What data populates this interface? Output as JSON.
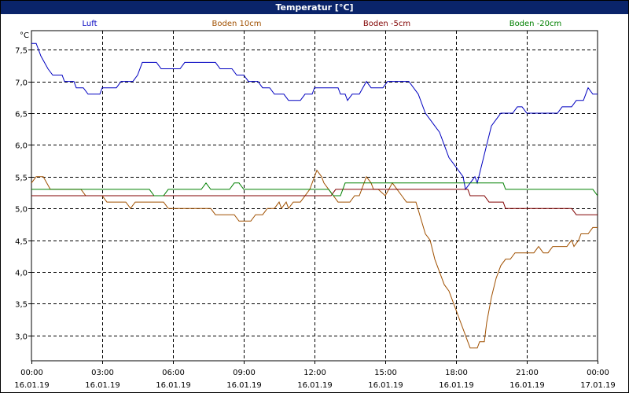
{
  "window": {
    "title": "Temperatur [°C]"
  },
  "chart_data": {
    "type": "line",
    "title": "Temperatur [°C]",
    "ylabel": "°C",
    "xlabel": "",
    "xlim_hours": [
      0,
      24
    ],
    "ylim": [
      2.6,
      7.8
    ],
    "grid": true,
    "legend": "top",
    "yticks": [
      "7,5",
      "7,0",
      "6,5",
      "6,0",
      "5,5",
      "5,0",
      "4,5",
      "4,0",
      "3,5",
      "3,0"
    ],
    "ytick_values": [
      7.5,
      7.0,
      6.5,
      6.0,
      5.5,
      5.0,
      4.5,
      4.0,
      3.5,
      3.0
    ],
    "xticks": [
      {
        "time": "00:00",
        "date": "16.01.19",
        "h": 0
      },
      {
        "time": "03:00",
        "date": "16.01.19",
        "h": 3
      },
      {
        "time": "06:00",
        "date": "16.01.19",
        "h": 6
      },
      {
        "time": "09:00",
        "date": "16.01.19",
        "h": 9
      },
      {
        "time": "12:00",
        "date": "16.01.19",
        "h": 12
      },
      {
        "time": "15:00",
        "date": "16.01.19",
        "h": 15
      },
      {
        "time": "18:00",
        "date": "16.01.19",
        "h": 18
      },
      {
        "time": "21:00",
        "date": "16.01.19",
        "h": 21
      },
      {
        "time": "00:00",
        "date": "17.01.19",
        "h": 24
      }
    ],
    "series": [
      {
        "name": "Luft",
        "color": "#0000c0",
        "points": [
          [
            0,
            7.6
          ],
          [
            0.2,
            7.6
          ],
          [
            0.4,
            7.4
          ],
          [
            0.7,
            7.2
          ],
          [
            0.9,
            7.1
          ],
          [
            1.3,
            7.1
          ],
          [
            1.4,
            7.0
          ],
          [
            1.8,
            7.0
          ],
          [
            1.9,
            6.9
          ],
          [
            2.2,
            6.9
          ],
          [
            2.4,
            6.8
          ],
          [
            2.9,
            6.8
          ],
          [
            3.0,
            6.9
          ],
          [
            3.6,
            6.9
          ],
          [
            3.8,
            7.0
          ],
          [
            4.3,
            7.0
          ],
          [
            4.5,
            7.1
          ],
          [
            4.7,
            7.3
          ],
          [
            5.3,
            7.3
          ],
          [
            5.5,
            7.2
          ],
          [
            6.3,
            7.2
          ],
          [
            6.5,
            7.3
          ],
          [
            7.8,
            7.3
          ],
          [
            8.0,
            7.2
          ],
          [
            8.5,
            7.2
          ],
          [
            8.7,
            7.1
          ],
          [
            9.0,
            7.1
          ],
          [
            9.2,
            7.0
          ],
          [
            9.6,
            7.0
          ],
          [
            9.8,
            6.9
          ],
          [
            10.1,
            6.9
          ],
          [
            10.3,
            6.8
          ],
          [
            10.7,
            6.8
          ],
          [
            10.9,
            6.7
          ],
          [
            11.4,
            6.7
          ],
          [
            11.6,
            6.8
          ],
          [
            11.9,
            6.8
          ],
          [
            12.0,
            6.9
          ],
          [
            13.0,
            6.9
          ],
          [
            13.1,
            6.8
          ],
          [
            13.3,
            6.8
          ],
          [
            13.4,
            6.7
          ],
          [
            13.6,
            6.8
          ],
          [
            13.9,
            6.8
          ],
          [
            14.2,
            7.0
          ],
          [
            14.4,
            6.9
          ],
          [
            14.9,
            6.9
          ],
          [
            15.1,
            7.0
          ],
          [
            16.0,
            7.0
          ],
          [
            16.4,
            6.8
          ],
          [
            16.7,
            6.5
          ],
          [
            16.9,
            6.4
          ],
          [
            17.1,
            6.3
          ],
          [
            17.3,
            6.2
          ],
          [
            17.5,
            6.0
          ],
          [
            17.7,
            5.8
          ],
          [
            17.9,
            5.7
          ],
          [
            18.1,
            5.6
          ],
          [
            18.3,
            5.5
          ],
          [
            18.4,
            5.3
          ],
          [
            18.6,
            5.4
          ],
          [
            18.8,
            5.5
          ],
          [
            18.9,
            5.4
          ],
          [
            19.1,
            5.7
          ],
          [
            19.3,
            6.0
          ],
          [
            19.5,
            6.3
          ],
          [
            19.7,
            6.4
          ],
          [
            19.9,
            6.5
          ],
          [
            20.4,
            6.5
          ],
          [
            20.6,
            6.6
          ],
          [
            20.8,
            6.6
          ],
          [
            21.0,
            6.5
          ],
          [
            22.3,
            6.5
          ],
          [
            22.5,
            6.6
          ],
          [
            22.9,
            6.6
          ],
          [
            23.1,
            6.7
          ],
          [
            23.4,
            6.7
          ],
          [
            23.6,
            6.9
          ],
          [
            23.8,
            6.8
          ],
          [
            24.0,
            6.8
          ]
        ]
      },
      {
        "name": "Boden 10cm",
        "color": "#a05000",
        "points": [
          [
            0,
            5.4
          ],
          [
            0.2,
            5.5
          ],
          [
            0.5,
            5.5
          ],
          [
            0.8,
            5.3
          ],
          [
            1.0,
            5.3
          ],
          [
            2.1,
            5.3
          ],
          [
            2.3,
            5.2
          ],
          [
            3.0,
            5.2
          ],
          [
            3.2,
            5.1
          ],
          [
            4.0,
            5.1
          ],
          [
            4.2,
            5.0
          ],
          [
            4.4,
            5.1
          ],
          [
            5.6,
            5.1
          ],
          [
            5.8,
            5.0
          ],
          [
            7.6,
            5.0
          ],
          [
            7.8,
            4.9
          ],
          [
            8.6,
            4.9
          ],
          [
            8.8,
            4.8
          ],
          [
            9.3,
            4.8
          ],
          [
            9.5,
            4.9
          ],
          [
            9.8,
            4.9
          ],
          [
            10.0,
            5.0
          ],
          [
            10.3,
            5.0
          ],
          [
            10.5,
            5.1
          ],
          [
            10.6,
            5.0
          ],
          [
            10.8,
            5.1
          ],
          [
            10.9,
            5.0
          ],
          [
            11.1,
            5.1
          ],
          [
            11.4,
            5.1
          ],
          [
            11.8,
            5.3
          ],
          [
            12.1,
            5.6
          ],
          [
            12.3,
            5.5
          ],
          [
            12.4,
            5.4
          ],
          [
            12.6,
            5.3
          ],
          [
            12.8,
            5.2
          ],
          [
            13.0,
            5.1
          ],
          [
            13.5,
            5.1
          ],
          [
            13.7,
            5.2
          ],
          [
            13.9,
            5.2
          ],
          [
            14.2,
            5.5
          ],
          [
            14.4,
            5.4
          ],
          [
            14.5,
            5.3
          ],
          [
            14.7,
            5.3
          ],
          [
            15.0,
            5.2
          ],
          [
            15.3,
            5.4
          ],
          [
            15.5,
            5.3
          ],
          [
            15.7,
            5.2
          ],
          [
            15.9,
            5.1
          ],
          [
            16.3,
            5.1
          ],
          [
            16.7,
            4.6
          ],
          [
            16.9,
            4.5
          ],
          [
            17.1,
            4.2
          ],
          [
            17.3,
            4.0
          ],
          [
            17.5,
            3.8
          ],
          [
            17.7,
            3.7
          ],
          [
            17.9,
            3.5
          ],
          [
            18.1,
            3.3
          ],
          [
            18.3,
            3.1
          ],
          [
            18.5,
            2.9
          ],
          [
            18.6,
            2.8
          ],
          [
            18.9,
            2.8
          ],
          [
            19.0,
            2.9
          ],
          [
            19.2,
            2.9
          ],
          [
            19.3,
            3.2
          ],
          [
            19.5,
            3.6
          ],
          [
            19.7,
            3.9
          ],
          [
            19.9,
            4.1
          ],
          [
            20.1,
            4.2
          ],
          [
            20.3,
            4.2
          ],
          [
            20.5,
            4.3
          ],
          [
            21.3,
            4.3
          ],
          [
            21.5,
            4.4
          ],
          [
            21.7,
            4.3
          ],
          [
            21.9,
            4.3
          ],
          [
            22.1,
            4.4
          ],
          [
            22.7,
            4.4
          ],
          [
            22.9,
            4.5
          ],
          [
            23.0,
            4.4
          ],
          [
            23.2,
            4.5
          ],
          [
            23.3,
            4.6
          ],
          [
            23.6,
            4.6
          ],
          [
            23.8,
            4.7
          ],
          [
            24.0,
            4.7
          ]
        ]
      },
      {
        "name": "Boden -5cm",
        "color": "#800000",
        "points": [
          [
            0,
            5.2
          ],
          [
            12.7,
            5.2
          ],
          [
            12.9,
            5.3
          ],
          [
            18.5,
            5.3
          ],
          [
            18.6,
            5.2
          ],
          [
            19.2,
            5.2
          ],
          [
            19.4,
            5.1
          ],
          [
            20.0,
            5.1
          ],
          [
            20.1,
            5.0
          ],
          [
            22.9,
            5.0
          ],
          [
            23.1,
            4.9
          ],
          [
            24.0,
            4.9
          ]
        ]
      },
      {
        "name": "Boden -20cm",
        "color": "#008000",
        "points": [
          [
            0,
            5.3
          ],
          [
            5.0,
            5.3
          ],
          [
            5.2,
            5.2
          ],
          [
            5.6,
            5.2
          ],
          [
            5.8,
            5.3
          ],
          [
            7.2,
            5.3
          ],
          [
            7.4,
            5.4
          ],
          [
            7.6,
            5.3
          ],
          [
            8.4,
            5.3
          ],
          [
            8.6,
            5.4
          ],
          [
            8.8,
            5.4
          ],
          [
            9.0,
            5.3
          ],
          [
            12.6,
            5.3
          ],
          [
            12.8,
            5.2
          ],
          [
            13.1,
            5.2
          ],
          [
            13.3,
            5.4
          ],
          [
            20.0,
            5.4
          ],
          [
            20.1,
            5.3
          ],
          [
            23.8,
            5.3
          ],
          [
            24.0,
            5.2
          ]
        ]
      }
    ]
  }
}
